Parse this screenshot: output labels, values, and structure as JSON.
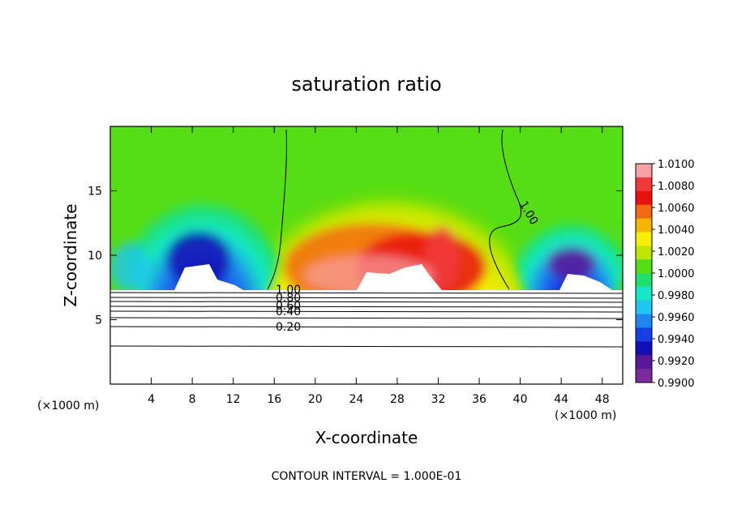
{
  "chart_data": {
    "type": "heatmap",
    "title": "saturation ratio",
    "xlabel": "X-coordinate",
    "ylabel": "Z-coordinate",
    "x_unit_label": "(×1000 m)",
    "y_unit_label": "(×1000 m)",
    "xlim": [
      0,
      50
    ],
    "ylim": [
      0,
      20
    ],
    "x_ticks": [
      4,
      8,
      12,
      16,
      20,
      24,
      28,
      32,
      36,
      40,
      44,
      48
    ],
    "y_ticks": [
      5,
      10,
      15
    ],
    "footer": "CONTOUR INTERVAL = 1.000E-01",
    "colorbar": {
      "levels": [
        "1.0100",
        "1.0080",
        "1.0060",
        "1.0040",
        "1.0020",
        "1.0000",
        "0.9980",
        "0.9960",
        "0.9940",
        "0.9920",
        "0.9900"
      ],
      "colors": [
        "#f7a0a6",
        "#f03a3a",
        "#e81010",
        "#f26a10",
        "#f5b400",
        "#f6f000",
        "#bfe600",
        "#55dd15",
        "#1ee06a",
        "#15e8c8",
        "#1fc6f0",
        "#1f86ee",
        "#1640e6",
        "#1010b4",
        "#5a1898",
        "#7a2a9a"
      ]
    },
    "contour_labels": [
      {
        "text": "1.00",
        "x": 17.6,
        "z": 7.3
      },
      {
        "text": "0.80",
        "x": 17.9,
        "z": 6.8
      },
      {
        "text": "0.60",
        "x": 17.9,
        "z": 6.2
      },
      {
        "text": "0.40",
        "x": 17.9,
        "z": 5.3
      },
      {
        "text": "0.20",
        "x": 17.6,
        "z": 4.3
      },
      {
        "text": "1.00",
        "x": 39.8,
        "z": 13.0
      }
    ]
  }
}
